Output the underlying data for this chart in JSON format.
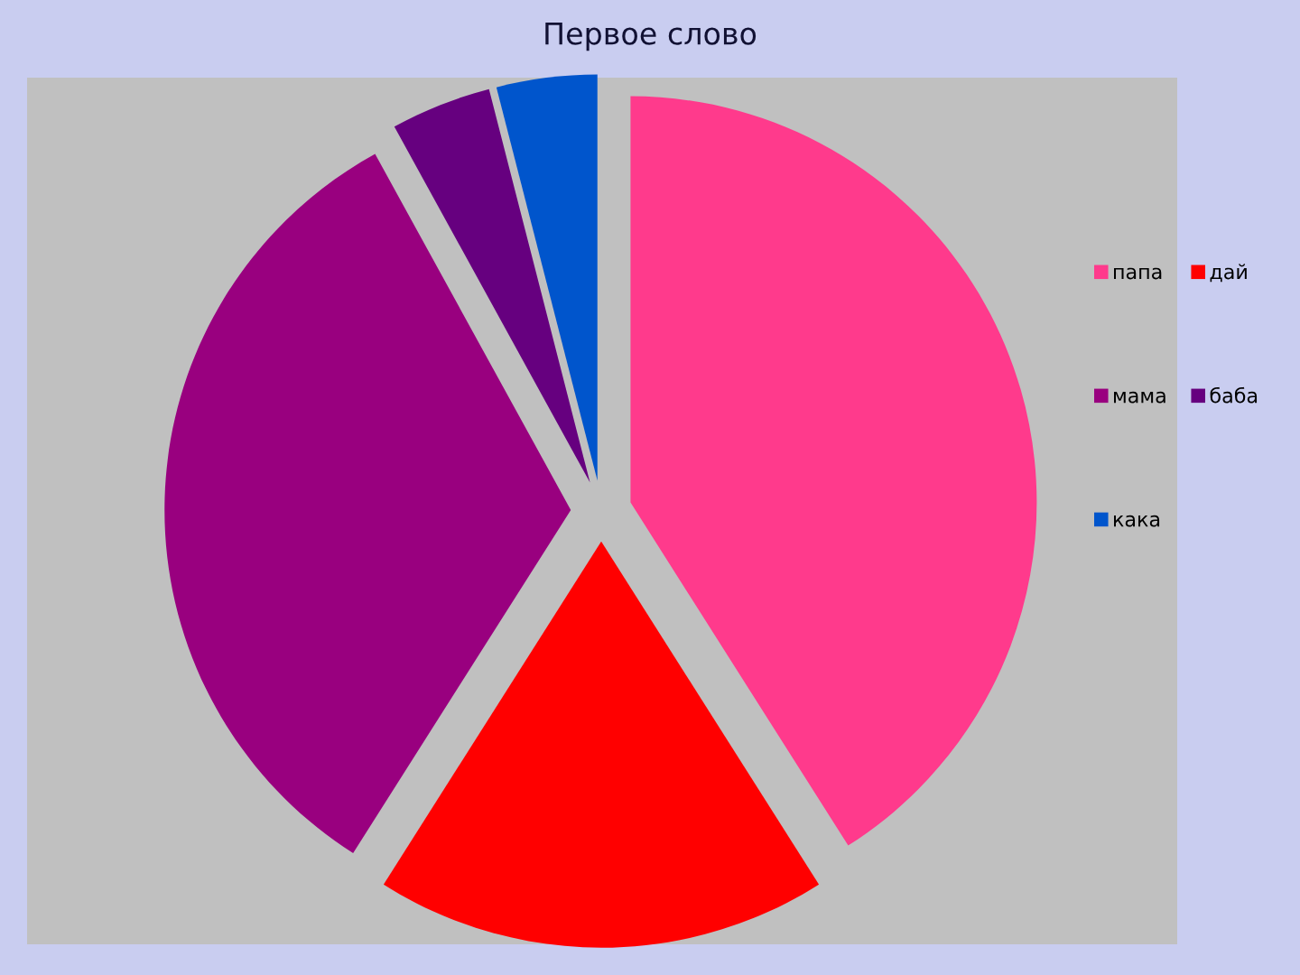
{
  "chart_data": {
    "type": "pie",
    "title": "Первое слово",
    "categories": [
      "папа",
      "дай",
      "мама",
      "баба",
      "кака"
    ],
    "values": [
      41,
      18,
      33,
      4,
      4
    ],
    "colors": [
      "#ff3a8c",
      "#ff0000",
      "#99007f",
      "#66007f",
      "#0055cc"
    ],
    "legend": "right"
  }
}
